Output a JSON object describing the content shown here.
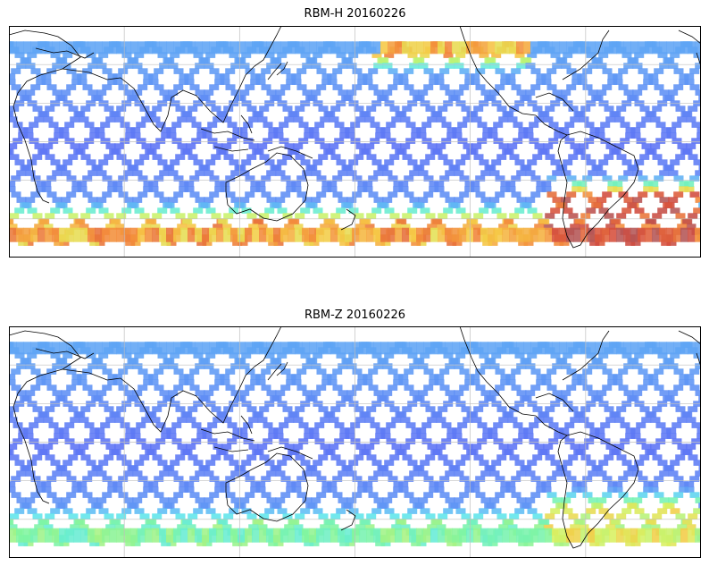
{
  "panels": [
    {
      "title": "RBM-H 20160226",
      "lon_range": [
        30,
        390
      ],
      "lat_range": [
        -60,
        60
      ],
      "data_lat_range": [
        -52,
        52
      ],
      "gridlines_lon": [
        90,
        150,
        210,
        270,
        330
      ],
      "gridlines_lat": [
        -40,
        -20,
        0,
        20,
        40
      ],
      "hot_regions": [
        {
          "name": "southern-band",
          "lat_range": [
            -52,
            -38
          ],
          "level": "high"
        },
        {
          "name": "south-atlantic",
          "lon_range": [
            310,
            390
          ],
          "lat_range": [
            -52,
            -25
          ],
          "level": "very-high"
        },
        {
          "name": "north-pacific",
          "lon_range": [
            220,
            300
          ],
          "lat_range": [
            45,
            52
          ],
          "level": "high"
        }
      ]
    },
    {
      "title": "RBM-Z 20160226",
      "lon_range": [
        30,
        390
      ],
      "lat_range": [
        -60,
        60
      ],
      "data_lat_range": [
        -52,
        52
      ],
      "gridlines_lon": [
        90,
        150,
        210,
        270,
        330
      ],
      "gridlines_lat": [
        -40,
        -20,
        0,
        20,
        40
      ],
      "hot_regions": [
        {
          "name": "southern-band",
          "lat_range": [
            -52,
            -38
          ],
          "level": "medium"
        },
        {
          "name": "south-atlantic",
          "lon_range": [
            310,
            390
          ],
          "lat_range": [
            -52,
            -30
          ],
          "level": "medium-high"
        }
      ]
    }
  ],
  "colormap": [
    "#5a5af5",
    "#5f8ff5",
    "#5fbdf5",
    "#5fe9e9",
    "#7ff59f",
    "#d8f061",
    "#f6c844",
    "#f38a3a",
    "#d44a3b",
    "#b45555"
  ],
  "map_colors": {
    "coastline": "#000000",
    "grid": "#bfbfbf",
    "frame": "#000000"
  }
}
